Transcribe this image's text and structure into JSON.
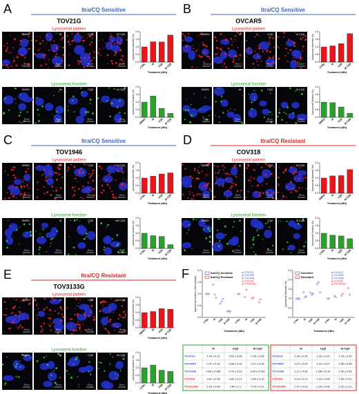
{
  "panels": [
    {
      "letter": "A",
      "group": "Itra/CQ Sensitive",
      "resistant": false,
      "cell_line": "TOV21G",
      "rows": [
        {
          "label": "Lysosomal pattern",
          "image_labels": [
            "DMSO",
            "Itl",
            "CQ5",
            "Itl CQ5"
          ],
          "scale_bar": "20 µm",
          "chart": {
            "type": "bar",
            "y_label": "Lysosomal diameter (fc)",
            "x_label": "Treatment (48h)",
            "categories": [
              "CTRL",
              "Itl",
              "CQ5",
              "Itl CQ5"
            ],
            "values": [
              1,
              1.34,
              1.33,
              1.78
            ],
            "color": "#e8161b",
            "ylim": [
              0,
              2
            ],
            "yticks": [
              {
                "value": 0,
                "label": "0.0"
              },
              {
                "value": 0.5,
                "label": "0.5"
              },
              {
                "value": 1,
                "label": "1.0"
              },
              {
                "value": 1.5,
                "label": "1.5"
              },
              {
                "value": 2,
                "label": "2.0"
              }
            ]
          }
        },
        {
          "label": "Lysosomal function",
          "image_labels": [
            "DMSO",
            "Itl",
            "CQ5",
            "Itl CQ5"
          ],
          "scale_bar": "20 µm",
          "chart": {
            "type": "bar",
            "y_label": "Lysosomal function (fc)",
            "x_label": "Treatment (48h)",
            "categories": [
              "DMSO",
              "Itl",
              "CQ5",
              "Itl CQ5"
            ],
            "values": [
              1,
              1.4,
              0.59,
              0.26
            ],
            "color": "#2ca02c",
            "ylim": [
              0,
              2
            ],
            "yticks": [
              {
                "value": 0,
                "label": "0.0"
              },
              {
                "value": 0.5,
                "label": "0.5"
              },
              {
                "value": 1,
                "label": "1.0"
              },
              {
                "value": 1.5,
                "label": "1.5"
              },
              {
                "value": 2,
                "label": "2.0"
              }
            ]
          }
        }
      ]
    },
    {
      "letter": "B",
      "group": "Itra/CQ Sensitive",
      "resistant": false,
      "cell_line": "OVCAR5",
      "rows": [
        {
          "label": "Lysosomal pattern",
          "image_labels": [
            "DMSO",
            "Itl",
            "CQ5",
            "Itl CQ5"
          ],
          "scale_bar": "20 µm",
          "chart": {
            "type": "bar",
            "y_label": "Lysosomal diameter (fc)",
            "x_label": "Treatment (48h)",
            "categories": [
              "CTRL",
              "Itl",
              "CQ5",
              "Itl CQ5"
            ],
            "values": [
              1,
              1.07,
              1.22,
              1.88
            ],
            "color": "#e8161b",
            "ylim": [
              0,
              2
            ],
            "yticks": [
              {
                "value": 0,
                "label": "0.0"
              },
              {
                "value": 0.5,
                "label": "0.5"
              },
              {
                "value": 1,
                "label": "1.0"
              },
              {
                "value": 1.5,
                "label": "1.5"
              },
              {
                "value": 2,
                "label": "2.0"
              }
            ]
          }
        },
        {
          "label": "Lysosomal function",
          "image_labels": [
            "DMSO",
            "Itl",
            "CQ5",
            "Itl CQ5"
          ],
          "scale_bar": "20 µm",
          "chart": {
            "type": "bar",
            "y_label": "Lysosomal function (fc)",
            "x_label": "Treatment (48h)",
            "categories": [
              "DMSO",
              "Itl",
              "CQ5",
              "Itl CQ5"
            ],
            "values": [
              1,
              0.97,
              0.68,
              0.27
            ],
            "color": "#2ca02c",
            "ylim": [
              0,
              2
            ],
            "yticks": [
              {
                "value": 0,
                "label": "0.0"
              },
              {
                "value": 0.5,
                "label": "0.5"
              },
              {
                "value": 1,
                "label": "1.0"
              },
              {
                "value": 1.5,
                "label": "1.5"
              },
              {
                "value": 2,
                "label": "2.0"
              }
            ]
          }
        }
      ]
    },
    {
      "letter": "C",
      "group": "Itra/CQ Sensitive",
      "resistant": false,
      "cell_line": "TOV1946",
      "rows": [
        {
          "label": "Lysosomal pattern",
          "image_labels": [
            "DMSO",
            "Itl",
            "CQ5",
            "Itl CQ5"
          ],
          "scale_bar": "20 µm",
          "chart": {
            "type": "bar",
            "y_label": "Lysosomal diameter (fc)",
            "x_label": "Treatment (48h)",
            "categories": [
              "CTRL",
              "Itl",
              "CQ5",
              "Itl CQ5"
            ],
            "values": [
              1,
              1.12,
              1.269,
              1.34
            ],
            "color": "#e8161b",
            "ylim": [
              0,
              2
            ],
            "yticks": [
              {
                "value": 0,
                "label": "0.0"
              },
              {
                "value": 0.5,
                "label": "0.5"
              },
              {
                "value": 1,
                "label": "1.0"
              },
              {
                "value": 1.5,
                "label": "1.5"
              },
              {
                "value": 2,
                "label": "2.0"
              }
            ]
          }
        },
        {
          "label": "Lysosomal function",
          "image_labels": [
            "DMSO",
            "Itl",
            "CQ5",
            "Itl CQ5"
          ],
          "scale_bar": "20 µm",
          "chart": {
            "type": "bar",
            "y_label": "Lysosomal function (fc)",
            "x_label": "Treatment (48h)",
            "categories": [
              "CTRL",
              "Itl",
              "CQ5",
              "Itl CQ5"
            ],
            "values": [
              1,
              0.84,
              0.79,
              0.25
            ],
            "color": "#2ca02c",
            "ylim": [
              0,
              2
            ],
            "yticks": [
              {
                "value": 0,
                "label": "0.0"
              },
              {
                "value": 0.5,
                "label": "0.5"
              },
              {
                "value": 1,
                "label": "1.0"
              },
              {
                "value": 1.5,
                "label": "1.5"
              },
              {
                "value": 2,
                "label": "2.0"
              }
            ]
          }
        }
      ]
    },
    {
      "letter": "D",
      "group": "Itra/CQ Resistant",
      "resistant": true,
      "cell_line": "COV318",
      "rows": [
        {
          "label": "Lysosomal pattern",
          "image_labels": [
            "DMSO",
            "Itl",
            "CQ5",
            "Itl CQ5"
          ],
          "scale_bar": "20 µm",
          "chart": {
            "type": "bar",
            "y_label": "Lysosomal diameter (fc)",
            "x_label": "Treatment (48h)",
            "categories": [
              "DMSO",
              "Itl",
              "CQ5",
              "Itl CQ5"
            ],
            "values": [
              1,
              1.14,
              1.16,
              1.56
            ],
            "color": "#e8161b",
            "ylim": [
              0,
              2
            ],
            "yticks": [
              {
                "value": 0,
                "label": "0.0"
              },
              {
                "value": 0.5,
                "label": "0.5"
              },
              {
                "value": 1,
                "label": "1.0"
              },
              {
                "value": 1.5,
                "label": "1.5"
              },
              {
                "value": 2,
                "label": "2.0"
              }
            ]
          }
        },
        {
          "label": "Lysosomal function",
          "image_labels": [
            "DMSO",
            "Itl",
            "CQ5",
            "Itl CQ5"
          ],
          "scale_bar": "20 µm",
          "chart": {
            "type": "bar",
            "y_label": "Lysosomal function (fc)",
            "x_label": "Treatment (48h)",
            "categories": [
              "CTRL",
              "Itl",
              "CQ5",
              "Itl CQ5"
            ],
            "values": [
              1,
              0.87,
              0.82,
              0.64
            ],
            "color": "#2ca02c",
            "ylim": [
              0,
              2
            ],
            "yticks": [
              {
                "value": 0,
                "label": "0.0"
              },
              {
                "value": 0.5,
                "label": "0.5"
              },
              {
                "value": 1,
                "label": "1.0"
              },
              {
                "value": 1.5,
                "label": "1.5"
              },
              {
                "value": 2,
                "label": "2.0"
              }
            ]
          }
        }
      ]
    },
    {
      "letter": "E",
      "group": "Itra/CQ Resistant",
      "resistant": true,
      "cell_line": "TOV3133G",
      "rows": [
        {
          "label": "Lysosomal pattern",
          "image_labels": [
            "DMSO",
            "Itl",
            "CQ5",
            "Itl CQ5"
          ],
          "scale_bar": "20 µm",
          "chart": {
            "type": "bar",
            "y_label": "Lysosomal diameter (fc)",
            "x_label": "Treatment (48h)",
            "categories": [
              "DMSO",
              "Itl",
              "CQ5",
              "Itl CQ5"
            ],
            "values": [
              1,
              1.07,
              1.26,
              1.22
            ],
            "color": "#e8161b",
            "ylim": [
              0,
              2
            ],
            "yticks": [
              {
                "value": 0,
                "label": "0.0"
              },
              {
                "value": 0.5,
                "label": "0.5"
              },
              {
                "value": 1,
                "label": "1.0"
              },
              {
                "value": 1.5,
                "label": "1.5"
              },
              {
                "value": 2,
                "label": "2.0"
              }
            ]
          }
        },
        {
          "label": "Lysosomal function",
          "image_labels": [
            "DMSO",
            "Itl",
            "CQ5",
            "Itl CQ5"
          ],
          "scale_bar": "20 µm",
          "chart": {
            "type": "bar",
            "y_label": "Lysosomal function (fc)",
            "x_label": "Treatment (48h)",
            "categories": [
              "CTRL",
              "Itl",
              "CQ5",
              "Itl CQ5"
            ],
            "values": [
              1,
              1.18,
              0.84,
              0.76
            ],
            "color": "#2ca02c",
            "ylim": [
              0,
              2
            ],
            "yticks": [
              {
                "value": 0,
                "label": "0.0"
              },
              {
                "value": 0.5,
                "label": "0.5"
              },
              {
                "value": 1,
                "label": "1.0"
              },
              {
                "value": 1.5,
                "label": "1.5"
              },
              {
                "value": 2,
                "label": "2.0"
              }
            ]
          }
        }
      ]
    }
  ],
  "figure_f": {
    "letter": "F",
    "charts": [
      {
        "type": "dot",
        "y_label": "Lysosomal function (fold change)",
        "x_label": "Treatment (48h)",
        "categories": [
          "CTRL",
          "Itl",
          "CQ5",
          "Itl CQ5"
        ],
        "ylim": [
          0,
          2
        ],
        "yticks": [
          {
            "value": 0,
            "label": "0.0"
          },
          {
            "value": 0.5,
            "label": "0.5"
          },
          {
            "value": 1,
            "label": "1.0"
          },
          {
            "value": 1.5,
            "label": "1.5"
          },
          {
            "value": 2,
            "label": "2.0"
          }
        ],
        "groups": [
          {
            "name": "Itra/CQ Sensitive",
            "color": "#3050c8",
            "series": [
              {
                "name": "TOV21G",
                "values": [
                  1,
                  1.4,
                  0.59,
                  0.26
                ]
              },
              {
                "name": "OVCAR5",
                "values": [
                  1,
                  0.97,
                  0.68,
                  0.27
                ]
              },
              {
                "name": "TOV1946",
                "values": [
                  1,
                  0.84,
                  0.79,
                  0.25
                ]
              }
            ]
          },
          {
            "name": "Itra/CQ Resistant",
            "color": "#e02020",
            "series": [
              {
                "name": "COV318",
                "values": [
                  1,
                  0.87,
                  0.82,
                  0.64
                ]
              },
              {
                "name": "TOV3133G",
                "values": [
                  1,
                  1.18,
                  0.84,
                  0.76
                ]
              }
            ]
          }
        ]
      },
      {
        "type": "dot",
        "y_label": "Lysosomal diameter (fc)",
        "x_label": "Treatment (48h)",
        "categories": [
          "CTRL",
          "Itl",
          "CQ5",
          "Itl CQ5"
        ],
        "ylim": [
          0,
          2.5
        ],
        "yticks": [
          {
            "value": 0,
            "label": "0.0"
          },
          {
            "value": 0.5,
            "label": "0.5"
          },
          {
            "value": 1,
            "label": "1.0"
          },
          {
            "value": 1.5,
            "label": "1.5"
          },
          {
            "value": 2,
            "label": "2.0"
          },
          {
            "value": 2.5,
            "label": "2.5"
          }
        ],
        "groups": [
          {
            "name": "Sensitive",
            "color": "#3050c8",
            "series": [
              {
                "name": "TOV21G",
                "values": [
                  1,
                  1.34,
                  1.33,
                  1.78
                ]
              },
              {
                "name": "OVCAR5",
                "values": [
                  1,
                  1.07,
                  1.22,
                  1.88
                ]
              },
              {
                "name": "TOV1946",
                "values": [
                  1,
                  1.12,
                  1.269,
                  1.34
                ]
              }
            ]
          },
          {
            "name": "Resistant",
            "color": "#e02020",
            "series": [
              {
                "name": "COV318",
                "values": [
                  1,
                  1.14,
                  1.16,
                  1.56
                ]
              },
              {
                "name": "TOV3133G",
                "values": [
                  1,
                  1.07,
                  1.26,
                  1.22
                ]
              }
            ]
          }
        ]
      }
    ],
    "tables": [
      {
        "columns": [
          "Itl",
          "CQ5",
          "Itl CQ5"
        ],
        "rows": [
          {
            "name": "TOV21G",
            "cells": [
              "1.40 ± 0.12",
              "0.59 ± 0.06",
              "0.26 ± 0.06"
            ]
          },
          {
            "name": "OVCAR5",
            "cells": [
              "0.97 ± 0.19",
              "0.68 ± 0.15",
              "0.27 ± 0.06"
            ]
          },
          {
            "name": "TOV1946",
            "cells": [
              "0.84 ± 0.085",
              "0.79 ± 0.22",
              "0.25 ± 0.015"
            ]
          },
          {
            "name": "COV318",
            "cells": [
              "0.87 ± 0.18",
              "0.82 ± 0.21",
              "0.64 ± 0.15"
            ]
          },
          {
            "name": "TOV3133G",
            "cells": [
              "1.18 ± 0.08",
              "0.84 ± 0.1",
              "0.76 ± 0.12"
            ]
          }
        ]
      },
      {
        "columns": [
          "Itl",
          "CQ5",
          "Itl CQ5"
        ],
        "rows": [
          {
            "name": "TOV21G",
            "cells": [
              "1.34 ± 0.25",
              "1.33 ± 0.20",
              "1.78 ± 0.25"
            ]
          },
          {
            "name": "OVCAR5",
            "cells": [
              "1.07 ± 0.04",
              "1.22 ± 0.07",
              "1.88 ± 0.06"
            ]
          },
          {
            "name": "TOV1946",
            "cells": [
              "1.12 ± 0.05",
              "1.269 ± 0.10",
              "1.34 ± 0.05"
            ]
          },
          {
            "name": "COV318",
            "cells": [
              "1.14 ± 0.21",
              "1.16 ± 0.05",
              "1.56 ± 0.20"
            ]
          },
          {
            "name": "TOV3133G",
            "cells": [
              "1.07 ± 0.02",
              "1.26 ± 0.08",
              "1.22 ± 0.11"
            ]
          }
        ]
      }
    ]
  }
}
